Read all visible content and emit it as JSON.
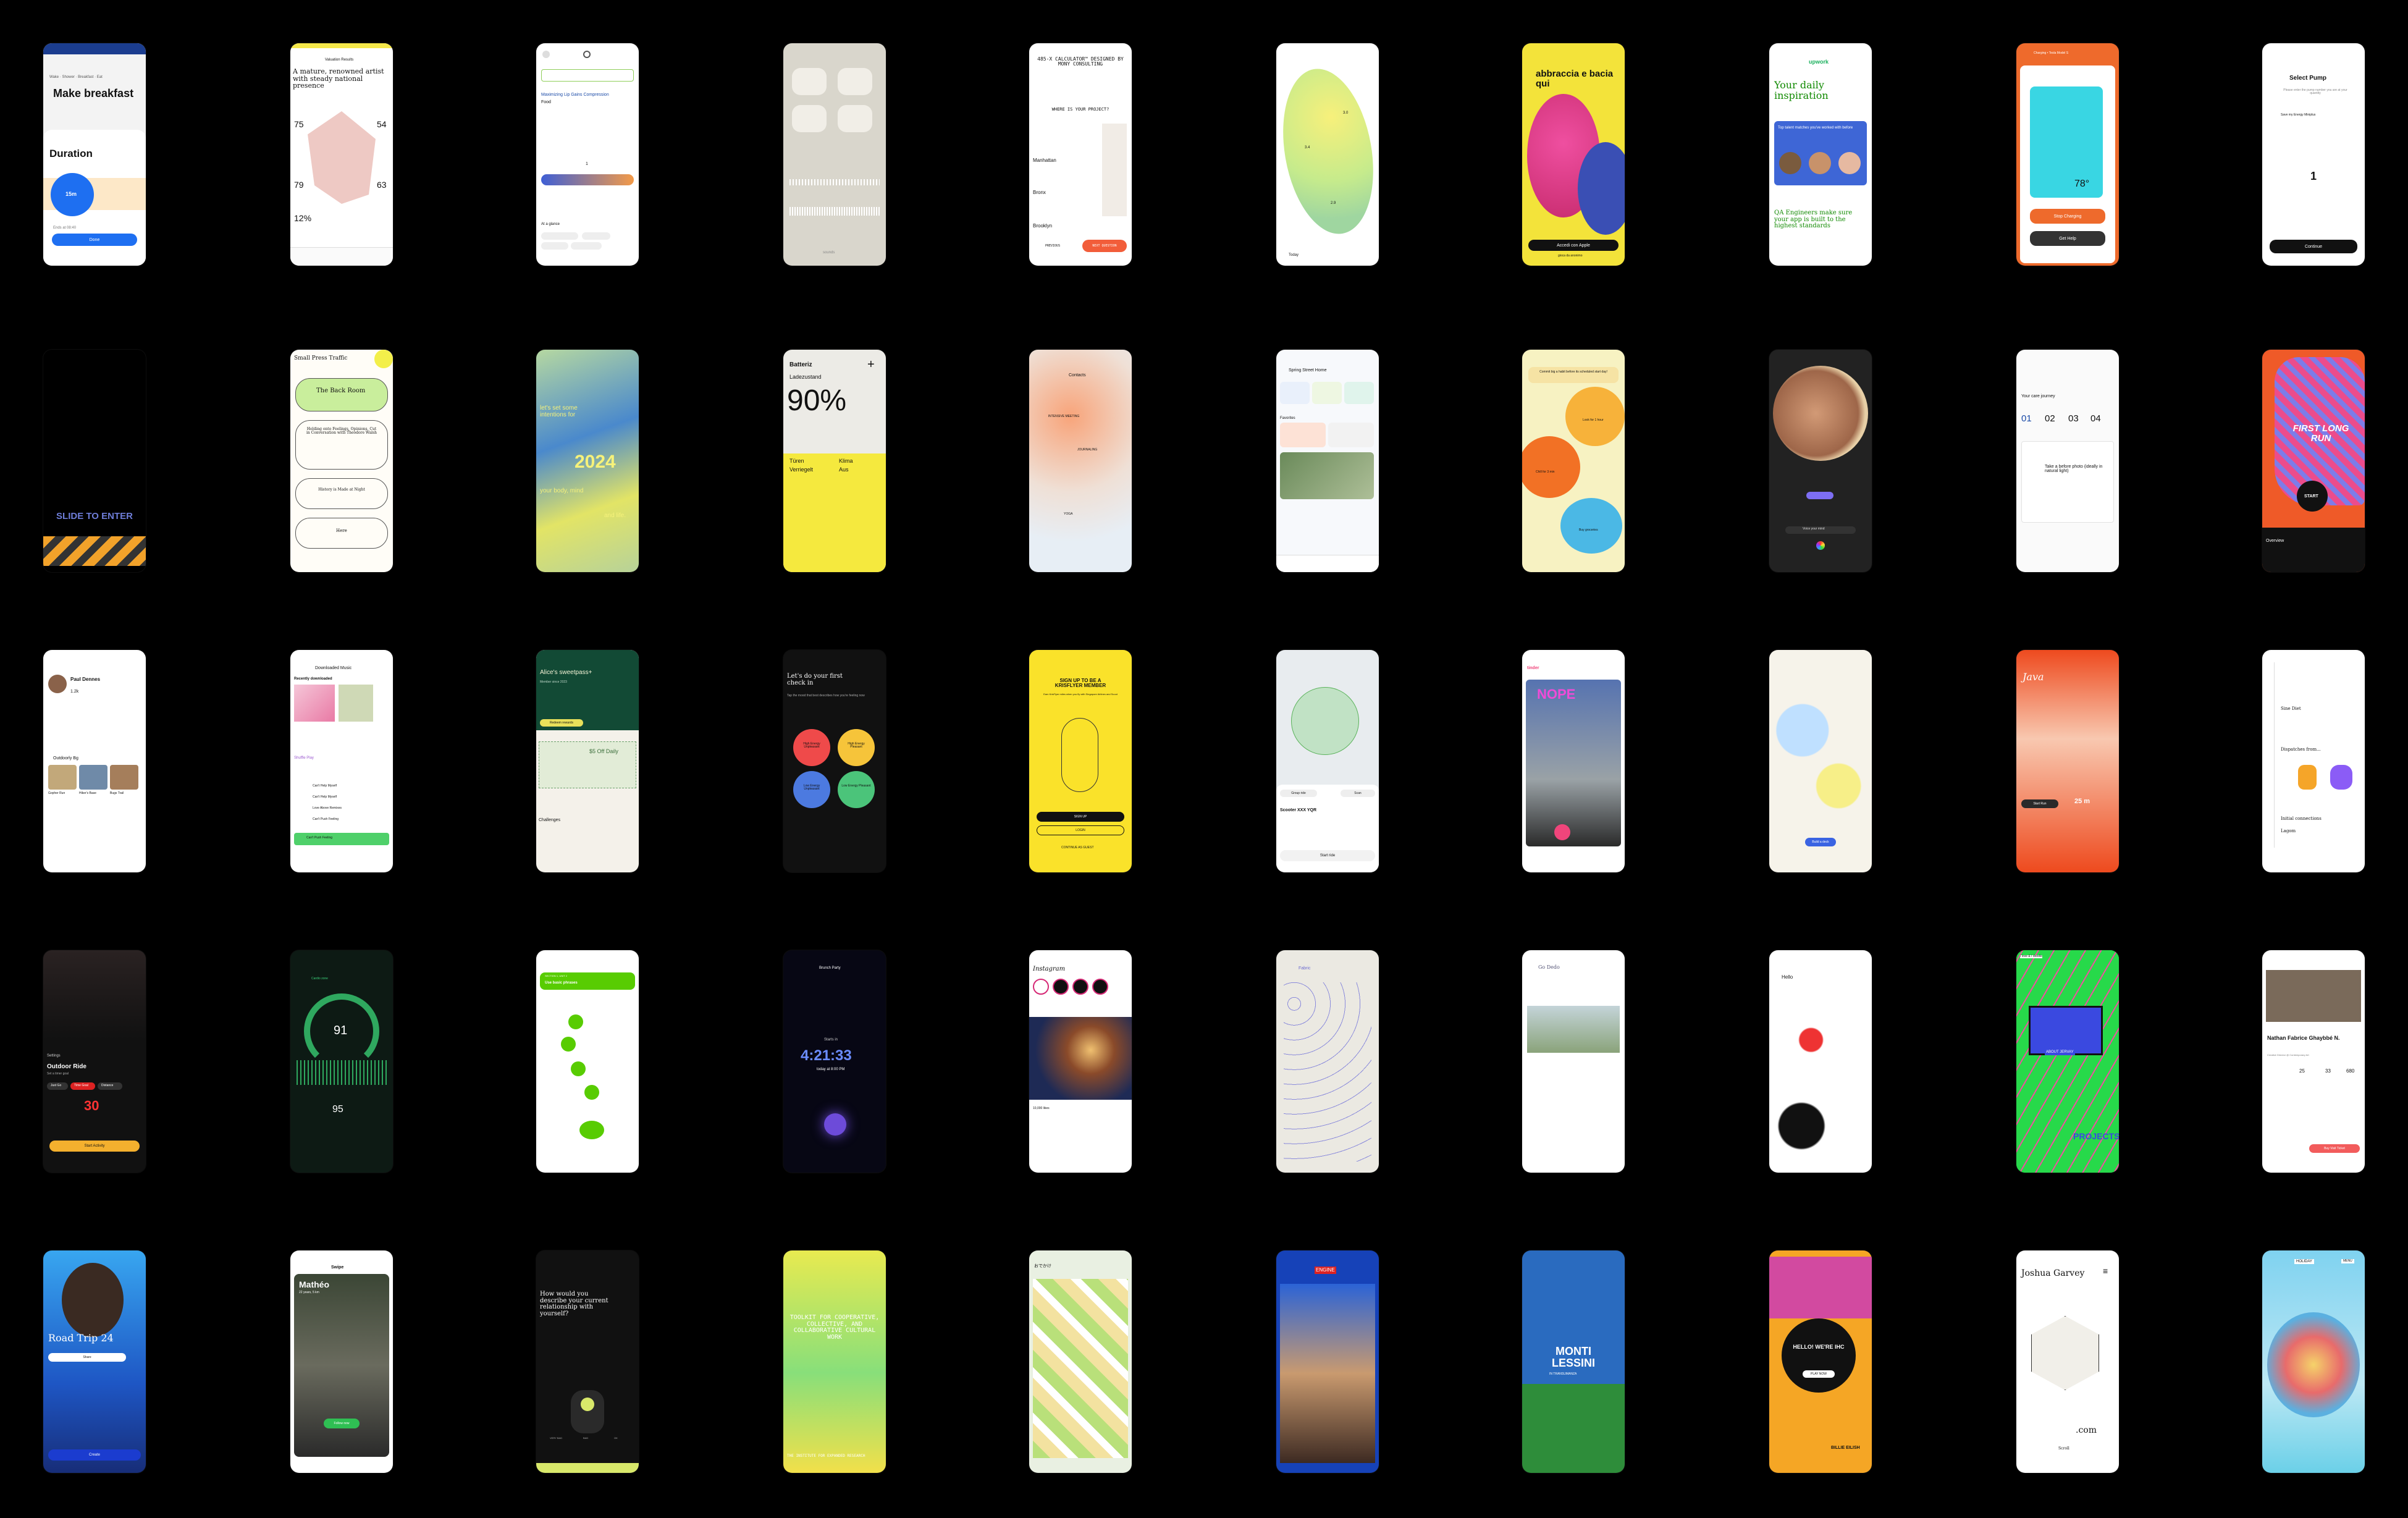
{
  "screens": {
    "s00": {
      "subtitle": "Wake · Shower · Breakfast · Eat",
      "title": "Make breakfast",
      "sheet_title": "Duration",
      "dial_value": "15m",
      "footnote": "Ends at 08:40",
      "button": "Done"
    },
    "s01": {
      "header": "Valuation Results",
      "title": "A mature, renowned artist with steady national presence",
      "v1": "75",
      "v2": "54",
      "v3": "79",
      "v4": "63",
      "pct": "12%"
    },
    "s02": {
      "title": "Maximizing Lip Gains Compression",
      "sub": "Food",
      "stepper": "1",
      "label": "At a glance",
      "tags": [
        "Dietary",
        "Grain free",
        "Gluten free",
        "Low fat"
      ]
    },
    "s03": {
      "caption": "sounds"
    },
    "s04": {
      "title": "485-X CALCULATOR™ DESIGNED BY MONY CONSULTING",
      "q": "WHERE IS YOUR PROJECT?",
      "o1": "Manhattan",
      "o2": "Bronx",
      "o3": "Brooklyn",
      "b1": "PREVIOUS",
      "b2": "NEXT QUESTION"
    },
    "s05": {
      "tab": "Today",
      "v1": "3.0",
      "v2": "3.4",
      "v3": "2.9"
    },
    "s06": {
      "title": "abbraccia e bacia qui",
      "button": "Accedi con Apple",
      "link": "gioca da anonimo"
    },
    "s07": {
      "brand": "upwork",
      "title": "Your daily inspiration",
      "card": "Top talent matches you've worked with before",
      "title2": "QA Engineers make sure your app is built to the highest standards"
    },
    "s08": {
      "header": "Charging • Tesla Model S",
      "temp": "78°",
      "b1": "Stop Charging",
      "b2": "Get Help"
    },
    "s09": {
      "title": "Select Pump",
      "sub": "Please enter the pump number you are at your quantity",
      "option": "Save my Energy Miniplus",
      "value": "1",
      "button": "Continue"
    },
    "s10": {
      "text": "SLIDE TO ENTER"
    },
    "s11": {
      "brand": "Small Press Traffic",
      "i1": "The Back Room",
      "i2": "Holding onto Feelings, Opinions, Cut in Conversation with Theodore Walsh",
      "i3": "History is Made at Night",
      "i4": "Here"
    },
    "s12": {
      "line1": "let's set some intentions for",
      "year": "2024",
      "line2": "your body, mind",
      "line3": "and life."
    },
    "s13": {
      "title": "Batteriz",
      "sub": "Ladezustand",
      "pct": "90%",
      "c1": "Türen",
      "c2": "Verriegelt",
      "c3": "Klima",
      "c4": "Aus"
    },
    "s14": {
      "title": "Contacts",
      "l1": "INTENSIVE MEETING",
      "l2": "JOURNALING",
      "l3": "YOGA"
    },
    "s15": {
      "title": "Spring Street Home",
      "label": "Favorites"
    },
    "s16": {
      "title": "Commit big a habit before its scheduled start day!",
      "c1": "Look for 1 hour",
      "c2": "Chill for 3 min",
      "c3": "Buy groceries"
    },
    "s17": {
      "caption": "Voice your mind"
    },
    "s18": {
      "title": "Your care journey",
      "d1": "01",
      "d2": "02",
      "d3": "03",
      "d4": "04",
      "q": "Take a before photo (ideally in natural light)"
    },
    "s19": {
      "title": "FIRST LONG RUN",
      "button": "START",
      "label": "Overview"
    },
    "s20": {
      "name": "Paul Dennes",
      "stat": "1.2k",
      "grp": "Outdoorly Bg",
      "f1": "Gopher Run",
      "f2": "Hiker's Base",
      "f3": "Bugs Trail"
    },
    "s21": {
      "title": "Downloaded Music",
      "sub": "Recently downloaded",
      "list": "Shuffle Play",
      "r1": "Can't Help Myself",
      "r2": "Can't Help Myself",
      "r3": "Love Above Remixes",
      "r4": "Can't Push Feeling",
      "player": "Can't Push Feeling"
    },
    "s22": {
      "title": "Alice's sweetpass+",
      "tag": "Member since 2023",
      "btn": "Redeem rewards",
      "coupon": "$5 Off Daily",
      "label": "Challenges"
    },
    "s23": {
      "title": "Let's do your first check in",
      "sub": "Tap the mood that best describes how you're feeling now",
      "c1": "High Energy Unpleasant",
      "c2": "High Energy Pleasant",
      "c3": "Low Energy Unpleasant",
      "c4": "Low Energy Pleasant"
    },
    "s24": {
      "title": "SIGN UP TO BE A KRISFLYER MEMBER",
      "sub": "Earn KrisFlyer miles when you fly with Singapore Airlines and Scoot",
      "b1": "SIGN UP",
      "b2": "LOGIN",
      "link": "CONTINUE AS GUEST"
    },
    "s25": {
      "title": "Scooter XXX YQR",
      "b1": "Group ride",
      "b2": "Scan",
      "button": "Start ride"
    },
    "s26": {
      "brand": "tinder",
      "sticker": "NOPE"
    },
    "s27": {
      "button": "Build a deck"
    },
    "s28": {
      "brand": "Java",
      "time": "25 m",
      "btn": "Start Run"
    },
    "s29": {
      "t1": "Sine Diet",
      "t2": "Dispatches from...",
      "t3": "Initial connections",
      "t4": "Lagom"
    },
    "s30": {
      "label": "Settings",
      "title": "Outdoor Ride",
      "sub": "Set a timer goal",
      "chip1": "Just Go",
      "chip2": "Time Goal",
      "chip3": "Distance",
      "value": "30",
      "button": "Start Activity"
    },
    "s31": {
      "value1": "91",
      "value2": "95",
      "label": "Cardio zone"
    },
    "s32": {
      "title": "Use basic phrases",
      "sub": "SECTION 1, UNIT 2"
    },
    "s33": {
      "title": "Brunch Party",
      "label": "Starts in",
      "time": "4:21:33",
      "sub": "today at 8:00 PM"
    },
    "s34": {
      "brand": "Instagram",
      "likes": "10,000 likes"
    },
    "s35": {
      "title": "Fabric"
    },
    "s36": {
      "note": "Go Dedo"
    },
    "s37": {
      "note": "Hello"
    },
    "s38": {
      "tag": "I love & I doodle",
      "bubble": "ABOUT JERVAY",
      "sticker": "PROJECTS"
    },
    "s39": {
      "name": "Nathan Fabrice Ghaybbé N.",
      "sub": "Creative Director @ Contemporary Art",
      "s1": "25",
      "s2": "33",
      "s3": "680",
      "btn": "Buy Visit Ticket"
    },
    "s40": {
      "title": "Road Trip 24",
      "btn": "Share",
      "button": "Create"
    },
    "s41": {
      "brand": "Swipe",
      "name": "Mathéo",
      "sub": "22 years, 5 km",
      "btn": "Follow now"
    },
    "s42": {
      "title": "How would you describe your current relationship with yourself?",
      "l1": "VERY BAD",
      "l2": "BAD",
      "l3": "OK"
    },
    "s43": {
      "title": "TOOLKIT FOR COOPERATIVE, COLLECTIVE, AND COLLABORATIVE CULTURAL WORK",
      "footer": "THE INSTITUTE FOR EXPANDED RESEARCH"
    },
    "s44": {
      "brand": "おでかけ"
    },
    "s45": {
      "sign": "ENGINE"
    },
    "s46": {
      "title": "MONTI LESSINI",
      "sub": "IN TRANSUMANZA"
    },
    "s47": {
      "title": "HELLO! WE'RE IHC",
      "btn": "PLAY NOW",
      "name": "BILLIE EILISH"
    },
    "s48": {
      "name": "Joshua Garvey",
      "suffix": ".com",
      "link": "Scroll"
    },
    "s49": {
      "badge": "HOLIDAY",
      "menu": "MENU"
    }
  }
}
